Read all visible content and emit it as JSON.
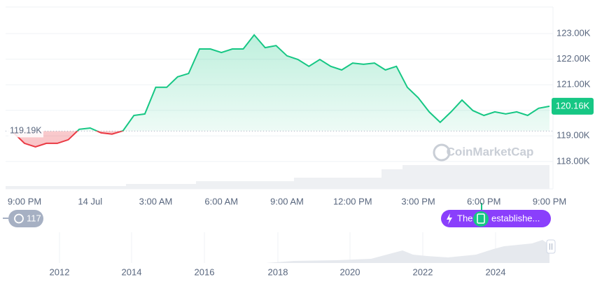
{
  "chart_data": {
    "type": "line",
    "categories": [
      null,
      "9:00 PM",
      null,
      null,
      null,
      null,
      null,
      "14 Jul",
      null,
      null,
      null,
      null,
      null,
      "3:00 AM",
      null,
      null,
      null,
      null,
      null,
      "6:00 AM",
      null,
      null,
      null,
      null,
      null,
      "9:00 AM",
      null,
      null,
      null,
      null,
      null,
      "12:00 PM",
      null,
      null,
      null,
      null,
      null,
      "3:00 PM",
      null,
      null,
      null,
      null,
      null,
      "6:00 PM",
      null,
      null,
      null,
      null,
      null,
      "9:00 PM"
    ],
    "values": [
      119120,
      118710,
      118570,
      118710,
      118710,
      118850,
      119260,
      119310,
      119120,
      119070,
      119200,
      119800,
      119860,
      120900,
      120900,
      121310,
      121440,
      122400,
      122400,
      122260,
      122400,
      122400,
      122950,
      122450,
      122530,
      122130,
      121990,
      121720,
      121990,
      121720,
      121580,
      121850,
      121800,
      121850,
      121580,
      121720,
      120900,
      120490,
      119940,
      119530,
      119940,
      120400,
      119990,
      119800,
      119940,
      119860,
      119940,
      119800,
      120080,
      120160
    ],
    "up_color": "#16c784",
    "down_color": "#ea3943",
    "ylim": [
      116930,
      124040
    ],
    "yticks": [
      {
        "value": 118000,
        "label": "118.00K"
      },
      {
        "value": 119000,
        "label": "119.00K"
      },
      {
        "value": 120000,
        "label": "120.00K"
      },
      {
        "value": 121000,
        "label": "121.00K"
      },
      {
        "value": 122000,
        "label": "122.00K"
      },
      {
        "value": 123000,
        "label": "123.00K"
      }
    ],
    "baseline": {
      "value": 119190,
      "label": "119.19K"
    },
    "current": {
      "value": 120160,
      "label": "120.16K"
    },
    "grid": true,
    "watermark": "CoinMarketCap",
    "navigator_years": [
      "2012",
      "2014",
      "2016",
      "2018",
      "2020",
      "2022",
      "2024"
    ],
    "alerts_count": "117",
    "event_text_start": "The",
    "event_text_end": "establishe..."
  }
}
